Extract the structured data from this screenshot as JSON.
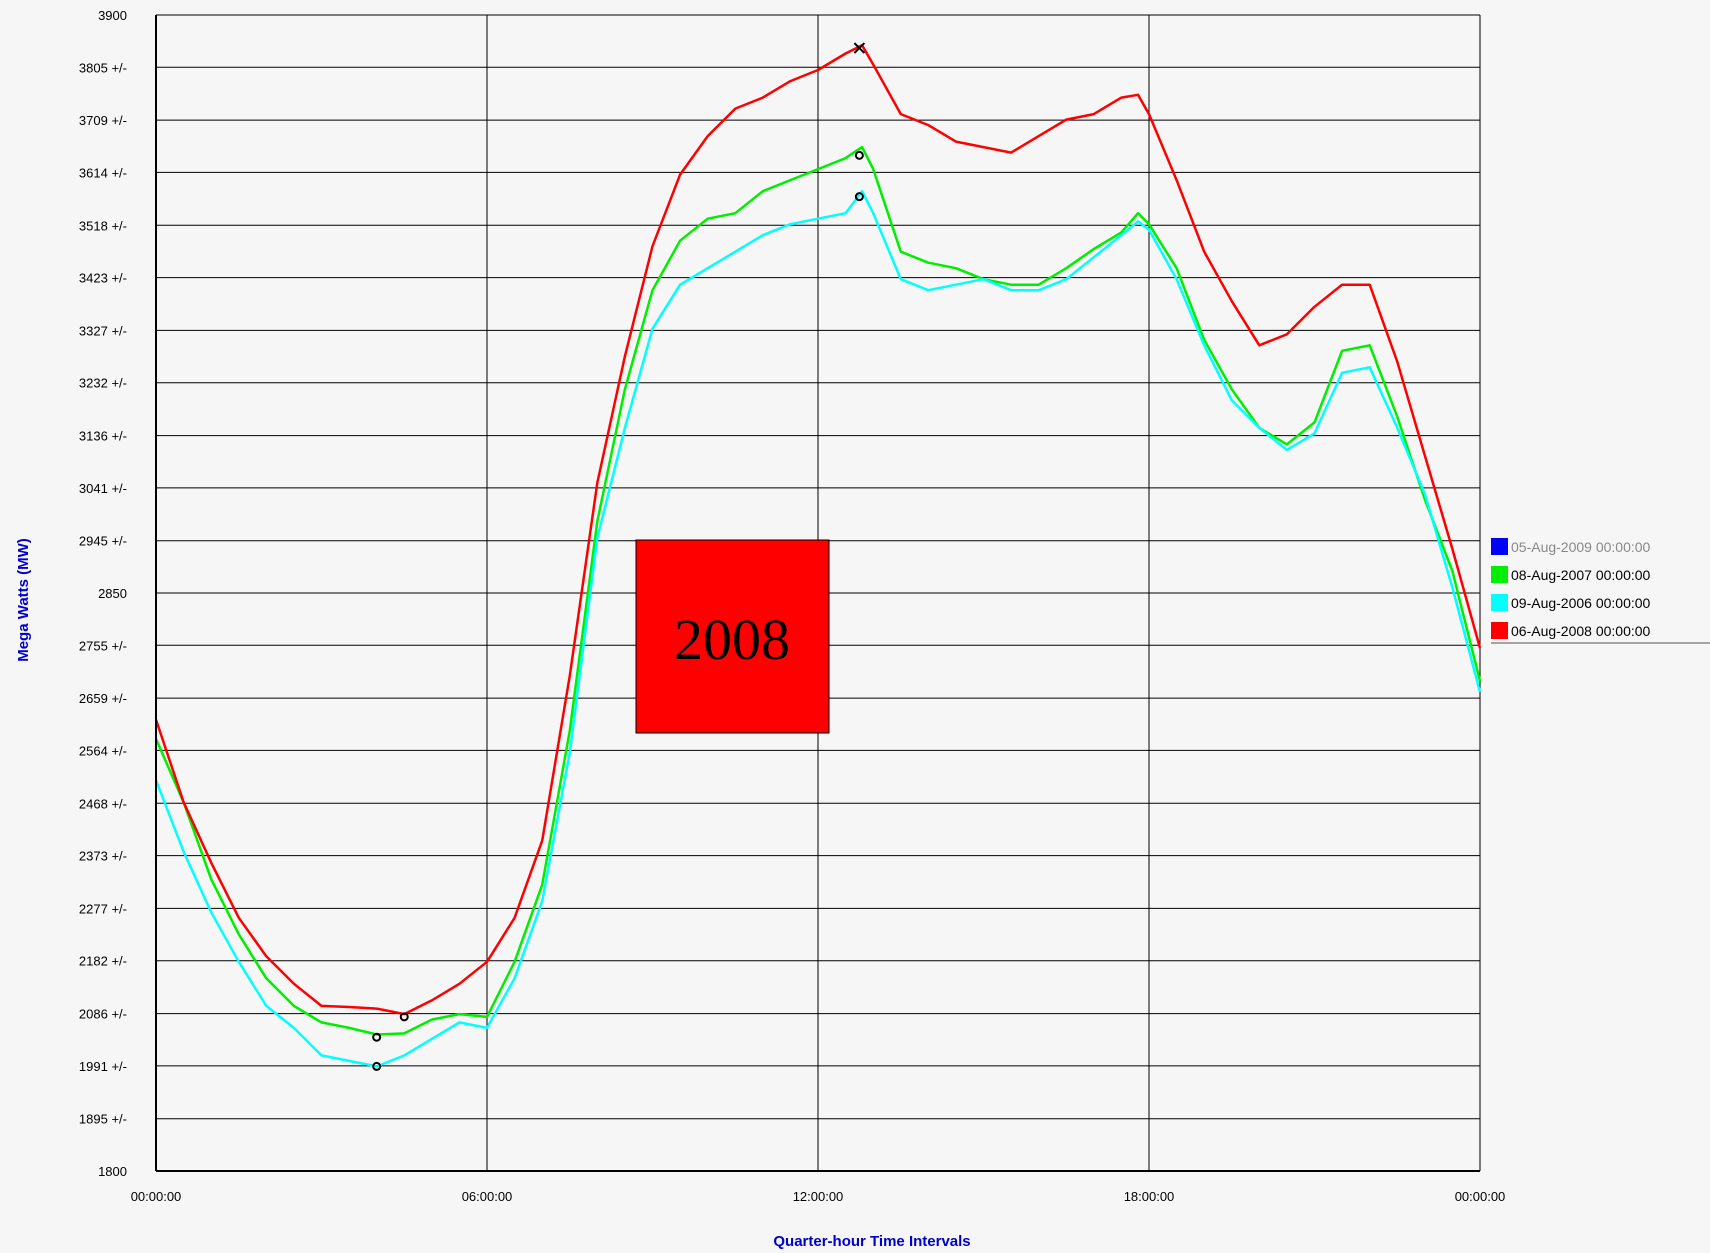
{
  "chart_data": {
    "type": "line",
    "xlabel": "Quarter-hour Time Intervals",
    "ylabel": "Mega Watts (MW)",
    "ylim": [
      1800,
      3900
    ],
    "xlim": [
      0,
      24
    ],
    "x_ticks": [
      {
        "hour": 0,
        "label": "00:00:00"
      },
      {
        "hour": 6,
        "label": "06:00:00"
      },
      {
        "hour": 12,
        "label": "12:00:00"
      },
      {
        "hour": 18,
        "label": "18:00:00"
      },
      {
        "hour": 24,
        "label": "00:00:00"
      }
    ],
    "y_ticks": [
      {
        "value": 3900,
        "label": "3900"
      },
      {
        "value": 3805,
        "label": "3805 +/-"
      },
      {
        "value": 3709,
        "label": "3709 +/-"
      },
      {
        "value": 3614,
        "label": "3614 +/-"
      },
      {
        "value": 3518,
        "label": "3518 +/-"
      },
      {
        "value": 3423,
        "label": "3423 +/-"
      },
      {
        "value": 3327,
        "label": "3327 +/-"
      },
      {
        "value": 3232,
        "label": "3232 +/-"
      },
      {
        "value": 3136,
        "label": "3136 +/-"
      },
      {
        "value": 3041,
        "label": "3041 +/-"
      },
      {
        "value": 2945,
        "label": "2945 +/-"
      },
      {
        "value": 2850,
        "label": "2850"
      },
      {
        "value": 2755,
        "label": "2755 +/-"
      },
      {
        "value": 2659,
        "label": "2659 +/-"
      },
      {
        "value": 2564,
        "label": "2564 +/-"
      },
      {
        "value": 2468,
        "label": "2468 +/-"
      },
      {
        "value": 2373,
        "label": "2373 +/-"
      },
      {
        "value": 2277,
        "label": "2277 +/-"
      },
      {
        "value": 2182,
        "label": "2182 +/-"
      },
      {
        "value": 2086,
        "label": "2086 +/-"
      },
      {
        "value": 1991,
        "label": "1991 +/-"
      },
      {
        "value": 1895,
        "label": "1895 +/-"
      },
      {
        "value": 1800,
        "label": "1800"
      }
    ],
    "grid": true,
    "legend_position": "right",
    "series": [
      {
        "name": "05-Aug-2009 00:00:00",
        "color": "#0000ff",
        "visible": false,
        "points": []
      },
      {
        "name": "08-Aug-2007 00:00:00",
        "color": "#00ee00",
        "points": [
          [
            0,
            2585
          ],
          [
            0.5,
            2470
          ],
          [
            1,
            2330
          ],
          [
            1.5,
            2230
          ],
          [
            2,
            2150
          ],
          [
            2.5,
            2100
          ],
          [
            3,
            2070
          ],
          [
            3.5,
            2060
          ],
          [
            4,
            2048
          ],
          [
            4.5,
            2050
          ],
          [
            5,
            2075
          ],
          [
            5.5,
            2085
          ],
          [
            6,
            2080
          ],
          [
            6.5,
            2180
          ],
          [
            7,
            2320
          ],
          [
            7.5,
            2600
          ],
          [
            8,
            2980
          ],
          [
            8.5,
            3220
          ],
          [
            9,
            3400
          ],
          [
            9.5,
            3490
          ],
          [
            10,
            3530
          ],
          [
            10.5,
            3540
          ],
          [
            11,
            3580
          ],
          [
            11.5,
            3600
          ],
          [
            12,
            3620
          ],
          [
            12.5,
            3640
          ],
          [
            12.8,
            3660
          ],
          [
            13,
            3620
          ],
          [
            13.5,
            3470
          ],
          [
            14,
            3450
          ],
          [
            14.5,
            3440
          ],
          [
            15,
            3420
          ],
          [
            15.5,
            3410
          ],
          [
            16,
            3410
          ],
          [
            16.5,
            3440
          ],
          [
            17,
            3475
          ],
          [
            17.5,
            3505
          ],
          [
            17.8,
            3540
          ],
          [
            18,
            3520
          ],
          [
            18.5,
            3440
          ],
          [
            19,
            3310
          ],
          [
            19.5,
            3220
          ],
          [
            20,
            3150
          ],
          [
            20.5,
            3120
          ],
          [
            21,
            3160
          ],
          [
            21.5,
            3290
          ],
          [
            22,
            3300
          ],
          [
            22.5,
            3170
          ],
          [
            23,
            3020
          ],
          [
            23.5,
            2890
          ],
          [
            24,
            2690
          ]
        ]
      },
      {
        "name": "09-Aug-2006 00:00:00",
        "color": "#00ffff",
        "points": [
          [
            0,
            2510
          ],
          [
            0.5,
            2380
          ],
          [
            1,
            2270
          ],
          [
            1.5,
            2180
          ],
          [
            2,
            2100
          ],
          [
            2.5,
            2060
          ],
          [
            3,
            2010
          ],
          [
            3.5,
            2000
          ],
          [
            4,
            1990
          ],
          [
            4.5,
            2010
          ],
          [
            5,
            2040
          ],
          [
            5.5,
            2070
          ],
          [
            6,
            2060
          ],
          [
            6.5,
            2150
          ],
          [
            7,
            2290
          ],
          [
            7.5,
            2560
          ],
          [
            8,
            2950
          ],
          [
            8.5,
            3150
          ],
          [
            9,
            3330
          ],
          [
            9.5,
            3410
          ],
          [
            10,
            3440
          ],
          [
            10.5,
            3470
          ],
          [
            11,
            3500
          ],
          [
            11.5,
            3520
          ],
          [
            12,
            3530
          ],
          [
            12.5,
            3540
          ],
          [
            12.8,
            3580
          ],
          [
            13,
            3540
          ],
          [
            13.5,
            3420
          ],
          [
            14,
            3400
          ],
          [
            14.5,
            3410
          ],
          [
            15,
            3420
          ],
          [
            15.5,
            3400
          ],
          [
            16,
            3400
          ],
          [
            16.5,
            3420
          ],
          [
            17,
            3460
          ],
          [
            17.5,
            3500
          ],
          [
            17.8,
            3525
          ],
          [
            18,
            3510
          ],
          [
            18.5,
            3420
          ],
          [
            19,
            3300
          ],
          [
            19.5,
            3200
          ],
          [
            20,
            3150
          ],
          [
            20.5,
            3110
          ],
          [
            21,
            3140
          ],
          [
            21.5,
            3250
          ],
          [
            22,
            3260
          ],
          [
            22.5,
            3150
          ],
          [
            23,
            3030
          ],
          [
            23.5,
            2860
          ],
          [
            24,
            2670
          ]
        ]
      },
      {
        "name": "06-Aug-2008 00:00:00",
        "color": "#ff0000",
        "points": [
          [
            0,
            2620
          ],
          [
            0.5,
            2470
          ],
          [
            1,
            2360
          ],
          [
            1.5,
            2260
          ],
          [
            2,
            2190
          ],
          [
            2.5,
            2140
          ],
          [
            3,
            2100
          ],
          [
            3.5,
            2098
          ],
          [
            4,
            2095
          ],
          [
            4.5,
            2085
          ],
          [
            5,
            2110
          ],
          [
            5.5,
            2140
          ],
          [
            6,
            2180
          ],
          [
            6.5,
            2260
          ],
          [
            7,
            2400
          ],
          [
            7.5,
            2700
          ],
          [
            8,
            3050
          ],
          [
            8.5,
            3280
          ],
          [
            9,
            3480
          ],
          [
            9.5,
            3610
          ],
          [
            10,
            3680
          ],
          [
            10.5,
            3730
          ],
          [
            11,
            3750
          ],
          [
            11.5,
            3780
          ],
          [
            12,
            3800
          ],
          [
            12.5,
            3830
          ],
          [
            12.8,
            3845
          ],
          [
            13,
            3810
          ],
          [
            13.5,
            3720
          ],
          [
            14,
            3700
          ],
          [
            14.5,
            3670
          ],
          [
            15,
            3660
          ],
          [
            15.5,
            3650
          ],
          [
            16,
            3680
          ],
          [
            16.5,
            3710
          ],
          [
            17,
            3720
          ],
          [
            17.5,
            3750
          ],
          [
            17.8,
            3755
          ],
          [
            18,
            3720
          ],
          [
            18.5,
            3600
          ],
          [
            19,
            3470
          ],
          [
            19.5,
            3380
          ],
          [
            20,
            3300
          ],
          [
            20.5,
            3320
          ],
          [
            21,
            3370
          ],
          [
            21.5,
            3410
          ],
          [
            22,
            3410
          ],
          [
            22.5,
            3270
          ],
          [
            23,
            3100
          ],
          [
            23.5,
            2930
          ],
          [
            24,
            2750
          ]
        ]
      }
    ],
    "markers": [
      {
        "series": "06-Aug-2008 00:00:00",
        "shape": "x",
        "x": 12.75,
        "y": 3840
      },
      {
        "series": "08-Aug-2007 00:00:00",
        "shape": "o",
        "x": 12.75,
        "y": 3645
      },
      {
        "series": "09-Aug-2006 00:00:00",
        "shape": "o",
        "x": 12.75,
        "y": 3570
      },
      {
        "series": "06-Aug-2008 00:00:00",
        "shape": "o",
        "x": 4.5,
        "y": 2080
      },
      {
        "series": "08-Aug-2007 00:00:00",
        "shape": "o",
        "x": 4.0,
        "y": 2043
      },
      {
        "series": "09-Aug-2006 00:00:00",
        "shape": "o",
        "x": 4.0,
        "y": 1990
      }
    ],
    "annotations": [
      {
        "text": "2008",
        "color": "#ff0000"
      }
    ]
  }
}
